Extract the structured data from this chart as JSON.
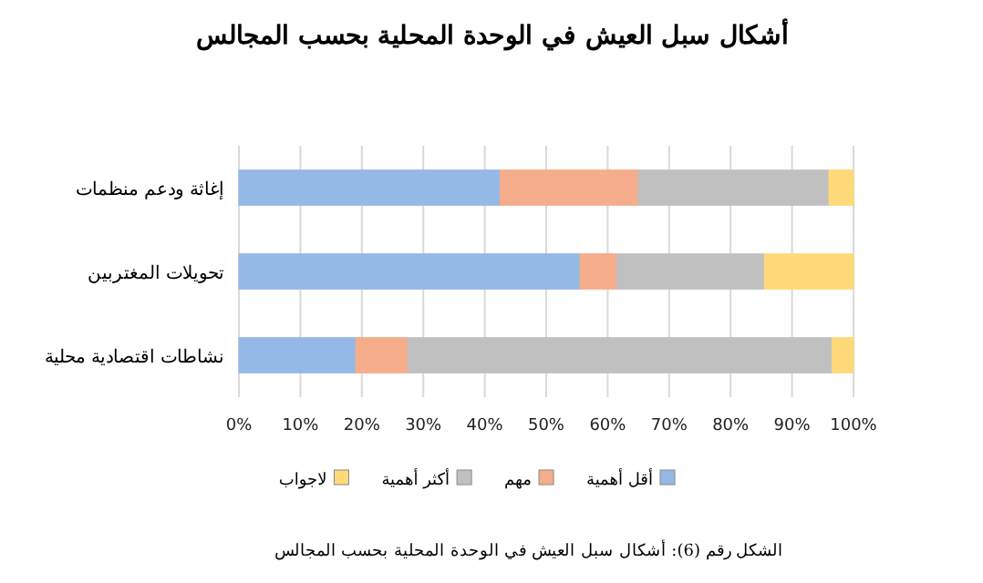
{
  "chart_data": {
    "type": "bar",
    "orientation": "horizontal",
    "stacked": true,
    "title": "أشكال سبل العيش في الوحدة المحلية بحسب المجالس",
    "categories": [
      "إغاثة ودعم منظمات",
      "تحويلات المغتربين",
      "نشاطات اقتصادية محلية"
    ],
    "series": [
      {
        "name": "أقل أهمية",
        "color": "#95b9e6",
        "values": [
          42.5,
          55.5,
          19
        ]
      },
      {
        "name": "مهم",
        "color": "#f5ad8c",
        "values": [
          22.5,
          6,
          8.5
        ]
      },
      {
        "name": "أكثر أهمية",
        "color": "#c0c0c0",
        "values": [
          31,
          24,
          69
        ]
      },
      {
        "name": "لاجواب",
        "color": "#ffd97a",
        "values": [
          4,
          14.5,
          3.5
        ]
      }
    ],
    "xlim": [
      0,
      100
    ],
    "xticks": [
      {
        "value": 0,
        "label": "0%"
      },
      {
        "value": 10,
        "label": "10%"
      },
      {
        "value": 20,
        "label": "20%"
      },
      {
        "value": 30,
        "label": "30%"
      },
      {
        "value": 40,
        "label": "40%"
      },
      {
        "value": 50,
        "label": "50%"
      },
      {
        "value": 60,
        "label": "60%"
      },
      {
        "value": 70,
        "label": "70%"
      },
      {
        "value": 80,
        "label": "80%"
      },
      {
        "value": 90,
        "label": "90%"
      },
      {
        "value": 100,
        "label": "100%"
      }
    ],
    "grid": "x",
    "legend": "bottom",
    "annotations": [
      "الشكل رقم (6): أشكال سبل العيش في الوحدة المحلية بحسب المجالس"
    ]
  }
}
